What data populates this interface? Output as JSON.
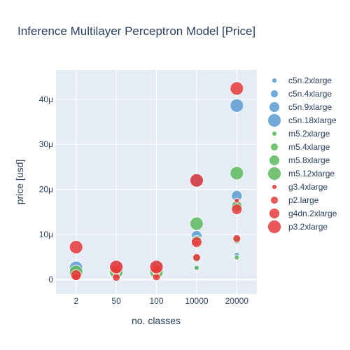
{
  "chart_data": {
    "type": "scatter",
    "title": "Inference Multilayer Perceptron Model [Price]",
    "xlabel": "no. classes",
    "ylabel": "price [usd]",
    "categories": [
      "2",
      "50",
      "100",
      "10000",
      "20000"
    ],
    "yticks": [
      0,
      10,
      20,
      30,
      40
    ],
    "ytick_labels": [
      "0",
      "10μ",
      "20μ",
      "30μ",
      "40μ"
    ],
    "y_unit_note": "values in micro-USD",
    "ylim": [
      -3.2,
      46.5
    ],
    "grid": true,
    "legend_position": "right",
    "series": [
      {
        "name": "c5n.2xlarge",
        "color": "#5b9bd1",
        "size": 6,
        "values": [
          1.3,
          1.2,
          1.3,
          2.6,
          5.5
        ]
      },
      {
        "name": "c5n.4xlarge",
        "color": "#5b9bd1",
        "size": 10,
        "values": [
          1.9,
          1.7,
          1.9,
          8.5,
          16.8
        ]
      },
      {
        "name": "c5n.9xlarge",
        "color": "#5b9bd1",
        "size": 14,
        "values": [
          2.1,
          2.1,
          2.1,
          9.7,
          18.6
        ]
      },
      {
        "name": "c5n.18xlarge",
        "color": "#5b9bd1",
        "size": 18,
        "values": [
          2.6,
          2.6,
          2.6,
          21.9,
          38.6
        ]
      },
      {
        "name": "m5.2xlarge",
        "color": "#5cb85c",
        "size": 6,
        "values": [
          0.7,
          0.7,
          0.7,
          2.6,
          4.9
        ]
      },
      {
        "name": "m5.4xlarge",
        "color": "#5cb85c",
        "size": 10,
        "values": [
          1.1,
          1.0,
          1.1,
          4.7,
          8.8
        ]
      },
      {
        "name": "m5.8xlarge",
        "color": "#5cb85c",
        "size": 14,
        "values": [
          1.3,
          1.3,
          1.3,
          8.6,
          16.3
        ]
      },
      {
        "name": "m5.12xlarge",
        "color": "#5cb85c",
        "size": 18,
        "values": [
          1.7,
          1.7,
          1.7,
          12.4,
          23.6
        ]
      },
      {
        "name": "g3.4xlarge",
        "color": "#e8393b",
        "size": 6,
        "values": [
          0.8,
          0.8,
          0.8,
          8.2,
          17.5
        ]
      },
      {
        "name": "p2.large",
        "color": "#e8393b",
        "size": 10,
        "values": [
          0.6,
          0.5,
          0.6,
          4.9,
          9.1
        ]
      },
      {
        "name": "g4dn.2xlarge",
        "color": "#e8393b",
        "size": 14,
        "values": [
          1.0,
          2.3,
          2.3,
          8.3,
          15.6
        ]
      },
      {
        "name": "p3.2xlarge",
        "color": "#e8393b",
        "size": 18,
        "values": [
          7.2,
          2.8,
          2.8,
          22.0,
          42.4
        ]
      }
    ]
  }
}
